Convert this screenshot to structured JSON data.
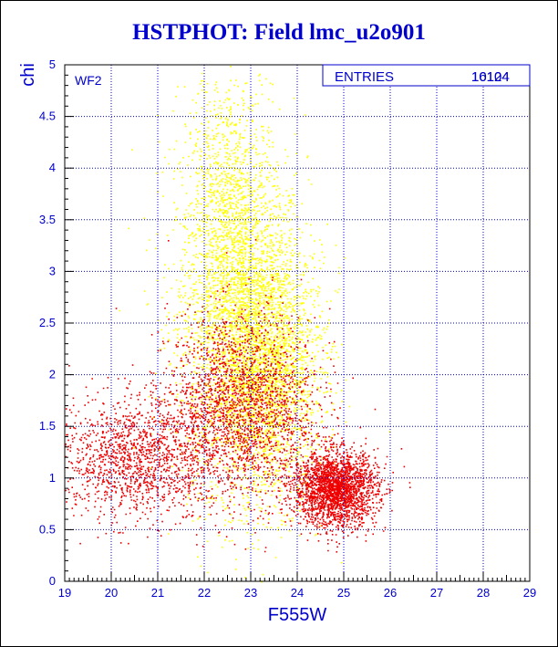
{
  "chart_data": {
    "type": "scatter",
    "title": "HSTPHOT: Field lmc_u2o901",
    "xlabel": "F555W",
    "ylabel": "chi",
    "xlim": [
      19,
      29
    ],
    "ylim": [
      0,
      5
    ],
    "x_ticks": [
      "19",
      "20",
      "21",
      "22",
      "23",
      "24",
      "25",
      "26",
      "27",
      "28",
      "29"
    ],
    "y_ticks": [
      "0",
      "0.5",
      "1",
      "1.5",
      "2",
      "2.5",
      "3",
      "3.5",
      "4",
      "4.5",
      "5"
    ],
    "grid": true,
    "panel_label": "WF2",
    "stats_box": {
      "label": "ENTRIES",
      "value": "16104",
      "overprint": "10124"
    },
    "colors": {
      "axis": "#0000cc",
      "grid": "#0000cc",
      "yellow_points": "#ffff00",
      "red_points": "#ee0000"
    },
    "series": [
      {
        "color": "#ffff00",
        "density_model": [
          {
            "x_mean": 22.8,
            "x_sd": 0.7,
            "y_mean": 2.5,
            "y_sd": 0.8,
            "weight": 0.55
          },
          {
            "x_mean": 23.4,
            "x_sd": 0.6,
            "y_mean": 2.0,
            "y_sd": 0.6,
            "weight": 0.3
          },
          {
            "x_mean": 22.5,
            "x_sd": 0.5,
            "y_mean": 3.8,
            "y_sd": 0.6,
            "weight": 0.15
          }
        ],
        "approx_count": 5500
      },
      {
        "color": "#ee0000",
        "density_model": [
          {
            "x_mean": 20.5,
            "x_sd": 0.9,
            "y_mean": 1.2,
            "y_sd": 0.3,
            "weight": 0.25
          },
          {
            "x_mean": 22.8,
            "x_sd": 0.8,
            "y_mean": 1.7,
            "y_sd": 0.45,
            "weight": 0.35
          },
          {
            "x_mean": 24.8,
            "x_sd": 0.45,
            "y_mean": 0.9,
            "y_sd": 0.18,
            "weight": 0.4
          }
        ],
        "approx_count": 6000
      }
    ]
  }
}
